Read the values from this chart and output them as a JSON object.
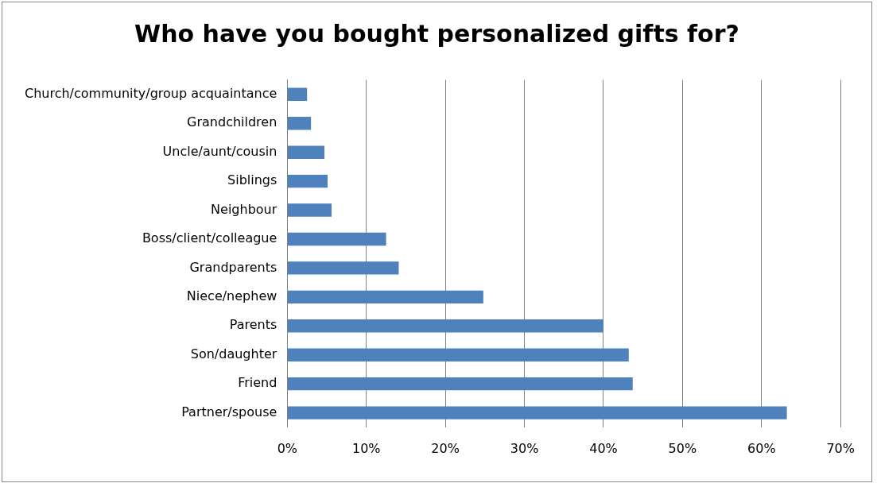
{
  "chart_data": {
    "type": "bar",
    "orientation": "horizontal",
    "title": "Who have you bought personalized gifts for?",
    "categories": [
      "Church/community/group acquaintance",
      "Grandchildren",
      "Uncle/aunt/cousin",
      "Siblings",
      "Neighbour",
      "Boss/client/colleague",
      "Grandparents",
      "Niece/nephew",
      "Parents",
      "Son/daughter",
      "Friend",
      "Partner/spouse"
    ],
    "values": [
      2.5,
      3,
      4.7,
      5.1,
      5.6,
      12.5,
      14.1,
      24.8,
      40,
      43.2,
      43.7,
      63.2
    ],
    "color": "#4f81bd",
    "xlim": [
      0,
      70
    ],
    "xticks": [
      {
        "value": 0,
        "label": "0%"
      },
      {
        "value": 10,
        "label": "10%"
      },
      {
        "value": 20,
        "label": "20%"
      },
      {
        "value": 30,
        "label": "30%"
      },
      {
        "value": 40,
        "label": "40%"
      },
      {
        "value": 50,
        "label": "50%"
      },
      {
        "value": 60,
        "label": "60%"
      },
      {
        "value": 70,
        "label": "70%"
      }
    ],
    "grid": "x",
    "legend": false
  }
}
